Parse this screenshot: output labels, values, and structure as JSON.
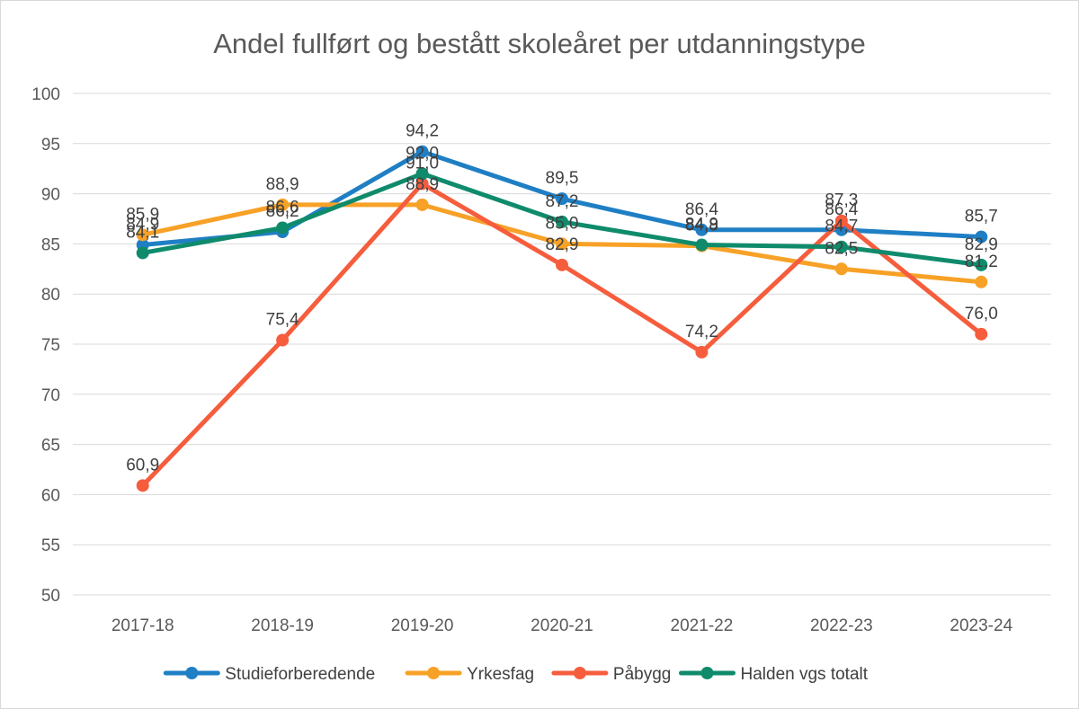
{
  "chart_data": {
    "type": "line",
    "title": "Andel fullført og bestått skoleåret per utdanningstype",
    "xlabel": "",
    "ylabel": "",
    "categories": [
      "2017-18",
      "2018-19",
      "2019-20",
      "2020-21",
      "2021-22",
      "2022-23",
      "2023-24"
    ],
    "ylim": [
      50,
      100
    ],
    "yticks": [
      50,
      55,
      60,
      65,
      70,
      75,
      80,
      85,
      90,
      95,
      100
    ],
    "grid": true,
    "legend_position": "bottom",
    "series": [
      {
        "name": "Studieforberedende",
        "color": "#1f7fc4",
        "values": [
          84.9,
          86.2,
          94.2,
          89.5,
          86.4,
          86.4,
          85.7
        ],
        "labels": [
          "84,9",
          "86,2",
          "94,2",
          "89,5",
          "86,4",
          "86,4",
          "85,7"
        ]
      },
      {
        "name": "Yrkesfag",
        "color": "#f7a127",
        "values": [
          85.9,
          88.9,
          88.9,
          85.0,
          84.8,
          82.5,
          81.2
        ],
        "labels": [
          "85,9",
          "88,9",
          "88,9",
          "85,0",
          "84,8",
          "82,5",
          "81,2"
        ]
      },
      {
        "name": "Påbygg",
        "color": "#f65d3d",
        "values": [
          60.9,
          75.4,
          91.0,
          82.9,
          74.2,
          87.3,
          76.0
        ],
        "labels": [
          "60,9",
          "75,4",
          "91,0",
          "82,9",
          "74,2",
          "87,3",
          "76,0"
        ]
      },
      {
        "name": "Halden vgs totalt",
        "color": "#0f8b6c",
        "values": [
          84.1,
          86.6,
          92.0,
          87.2,
          84.9,
          84.7,
          82.9
        ],
        "labels": [
          "84,1",
          "86,6",
          "92,0",
          "87,2",
          "84,9",
          "84,7",
          "82,9"
        ]
      }
    ]
  }
}
